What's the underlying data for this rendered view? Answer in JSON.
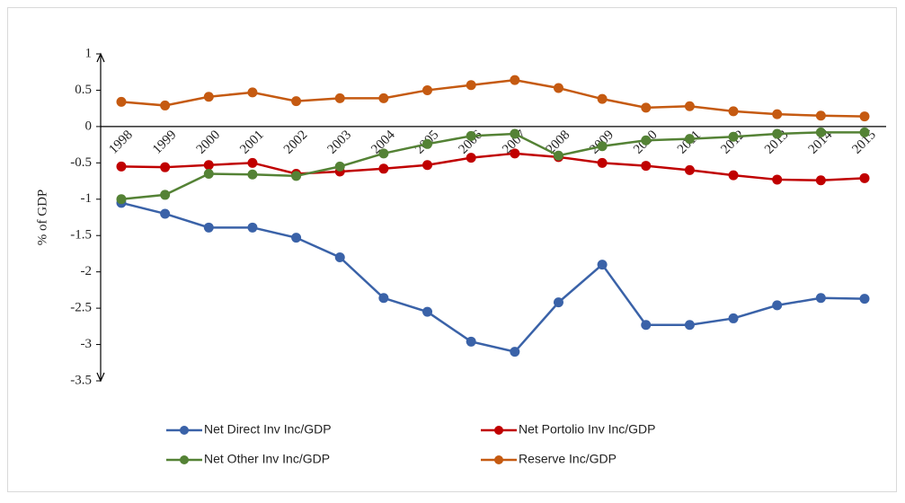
{
  "chart_data": {
    "type": "line",
    "y_label": "% of GDP",
    "categories": [
      "1998",
      "1999",
      "2000",
      "2001",
      "2002",
      "2003",
      "2004",
      "2005",
      "2006",
      "2007",
      "2008",
      "2009",
      "2010",
      "2011",
      "2012",
      "2013",
      "2014",
      "2015"
    ],
    "series": [
      {
        "name": "Net Direct Inv Inc/GDP",
        "color": "#3a62a8",
        "values": [
          -1.05,
          -1.2,
          -1.39,
          -1.39,
          -1.53,
          -1.8,
          -2.36,
          -2.55,
          -2.96,
          -3.1,
          -2.42,
          -1.9,
          -2.73,
          -2.73,
          -2.64,
          -2.46,
          -2.36,
          -2.37
        ]
      },
      {
        "name": "Net Portolio Inv Inc/GDP",
        "color": "#c00000",
        "values": [
          -0.55,
          -0.56,
          -0.53,
          -0.5,
          -0.65,
          -0.62,
          -0.58,
          -0.53,
          -0.43,
          -0.37,
          -0.42,
          -0.5,
          -0.54,
          -0.6,
          -0.67,
          -0.73,
          -0.74,
          -0.71
        ]
      },
      {
        "name": "Net Other Inv Inc/GDP",
        "color": "#548235",
        "values": [
          -1.0,
          -0.94,
          -0.65,
          -0.66,
          -0.68,
          -0.55,
          -0.37,
          -0.24,
          -0.13,
          -0.1,
          -0.4,
          -0.27,
          -0.19,
          -0.17,
          -0.14,
          -0.1,
          -0.08,
          -0.08
        ]
      },
      {
        "name": "Reserve Inc/GDP",
        "color": "#c55a11",
        "values": [
          0.34,
          0.29,
          0.41,
          0.47,
          0.35,
          0.39,
          0.39,
          0.5,
          0.57,
          0.64,
          0.53,
          0.38,
          0.26,
          0.28,
          0.21,
          0.17,
          0.15,
          0.14
        ]
      }
    ],
    "ylim": [
      -3.5,
      1
    ],
    "yticks": [
      1,
      0.5,
      0,
      -0.5,
      -1,
      -1.5,
      -2,
      -2.5,
      -3,
      -3.5
    ],
    "grid": false,
    "legend": "bottom"
  }
}
